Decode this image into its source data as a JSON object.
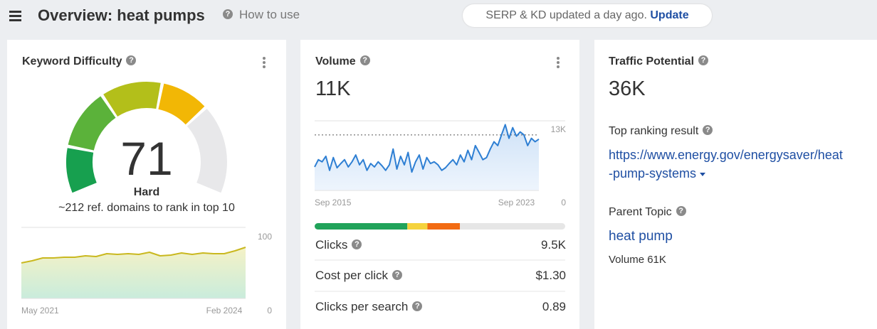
{
  "header": {
    "title": "Overview: heat pumps",
    "help": "How to use",
    "status": "SERP & KD updated a day ago.",
    "update": "Update"
  },
  "keyword_difficulty": {
    "title": "Keyword Difficulty",
    "value": 71,
    "label": "Hard",
    "subtitle": "~212 ref. domains to rank in top 10",
    "colors": [
      "#17a04f",
      "#5bb23a",
      "#b3bf1a",
      "#f2b705"
    ],
    "track_color": "#e8e8ea",
    "chart": {
      "type": "line",
      "categories": [
        "May 2021",
        null,
        null,
        null,
        null,
        null,
        null,
        null,
        null,
        null,
        null,
        null,
        null,
        null,
        null,
        null,
        null,
        null,
        null,
        "Feb 2024",
        null,
        null
      ],
      "values": [
        50,
        53,
        57,
        57,
        58,
        58,
        60,
        59,
        63,
        62,
        63,
        62,
        65,
        60,
        61,
        64,
        62,
        64,
        63,
        63,
        67,
        72
      ],
      "ylim": [
        0,
        100
      ],
      "yticks": [
        0,
        100
      ],
      "color": "#c9b81f",
      "fill_top": "#f5f2c6",
      "fill_bottom": "#c9ecdc",
      "grid_style": "solid"
    }
  },
  "volume": {
    "title": "Volume",
    "value_label": "11K",
    "chart": {
      "type": "line",
      "categories": [
        "Sep 2015",
        null,
        null,
        null,
        null,
        null,
        null,
        null,
        null,
        null,
        null,
        null,
        null,
        null,
        null,
        null,
        null,
        null,
        null,
        null,
        null,
        null,
        null,
        null,
        null,
        null,
        null,
        null,
        null,
        null,
        null,
        null,
        null,
        null,
        null,
        null,
        null,
        null,
        null,
        null,
        null,
        null,
        null,
        null,
        null,
        null,
        null,
        null,
        null,
        null,
        null,
        null,
        null,
        null,
        "Sep 2023",
        null,
        null,
        null,
        null,
        null,
        null
      ],
      "values": [
        5500,
        7200,
        6700,
        8000,
        4700,
        7700,
        5300,
        6300,
        7200,
        5500,
        6700,
        8300,
        6000,
        7200,
        4700,
        6300,
        5500,
        6700,
        5800,
        4700,
        6000,
        9700,
        5000,
        8000,
        6000,
        8900,
        4300,
        6700,
        8300,
        5000,
        7700,
        6300,
        6700,
        6000,
        4700,
        5300,
        6300,
        7200,
        6000,
        8300,
        6700,
        9400,
        7200,
        10500,
        8900,
        7200,
        7700,
        9700,
        11400,
        10500,
        13000,
        15400,
        12200,
        14700,
        12700,
        13700,
        13000,
        10500,
        12200,
        11400,
        12000
      ],
      "ylim": [
        0,
        16300
      ],
      "yticks": [
        0,
        {
          "value": 13000,
          "label": "13K"
        }
      ],
      "color": "#2e7fd3",
      "fill_top": "#cfe2f7",
      "fill_bottom": "#eef5fd",
      "grid_style": "dashed"
    },
    "click_distribution": {
      "values": [
        37,
        8,
        13,
        42
      ],
      "colors": [
        "#21a35a",
        "#f5d33d",
        "#f26b12",
        "#e6e6e6"
      ]
    },
    "metrics": [
      {
        "label": "Clicks",
        "value": "9.5K"
      },
      {
        "label": "Cost per click",
        "value": "$1.30"
      },
      {
        "label": "Clicks per search",
        "value": "0.89"
      }
    ]
  },
  "traffic_potential": {
    "title": "Traffic Potential",
    "value_label": "36K",
    "top_result_label": "Top ranking result",
    "url": "https://www.energy.gov/energysaver/heat-pump-systems",
    "parent_topic_label": "Parent Topic",
    "parent_topic": "heat pump",
    "parent_volume": "Volume 61K"
  }
}
